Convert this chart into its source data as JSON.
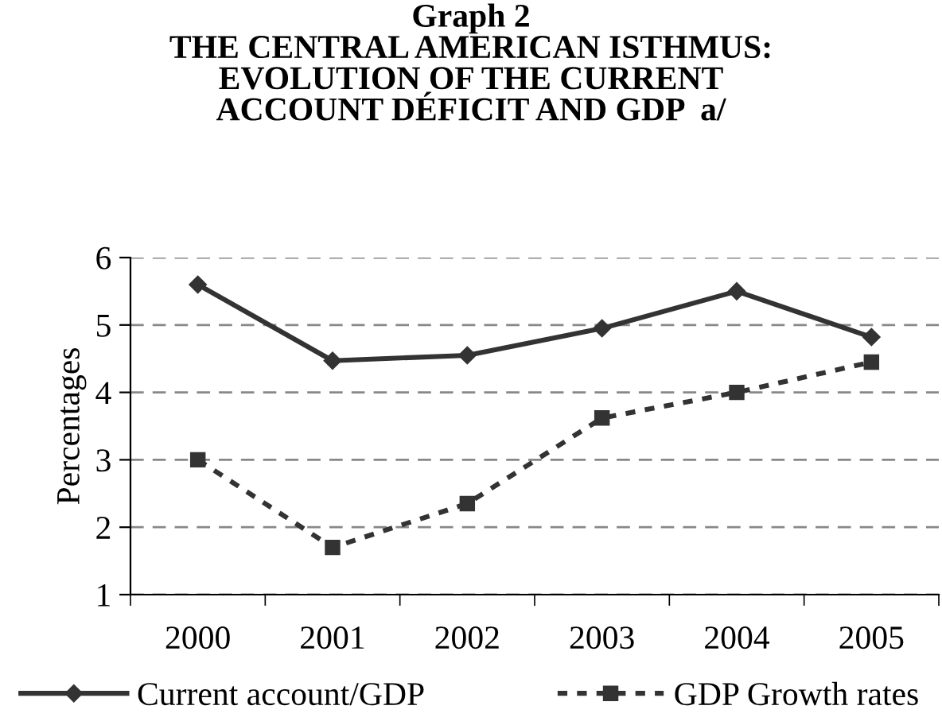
{
  "chart_data": {
    "type": "line",
    "title": "Graph 2\nTHE CENTRAL AMERICAN ISTHMUS:\nEVOLUTION OF THE CURRENT\nACCOUNT DÉFICIT AND GDP  a/",
    "ylabel": "Percentages",
    "categories": [
      "2000",
      "2001",
      "2002",
      "2003",
      "2004",
      "2005"
    ],
    "series": [
      {
        "name": "Current account/GDP",
        "color": "#333333",
        "marker": "diamond",
        "line_style": "solid",
        "values": [
          5.6,
          4.47,
          4.55,
          4.95,
          5.5,
          4.82
        ]
      },
      {
        "name": "GDP Growth rates",
        "color": "#333333",
        "marker": "square",
        "line_style": "dotted",
        "values": [
          3.0,
          1.7,
          2.35,
          3.62,
          4.0,
          4.45
        ]
      }
    ],
    "ylim": [
      1,
      6
    ],
    "yticks": [
      1,
      2,
      3,
      4,
      5,
      6
    ],
    "grid": "y",
    "legend": "bottom"
  }
}
